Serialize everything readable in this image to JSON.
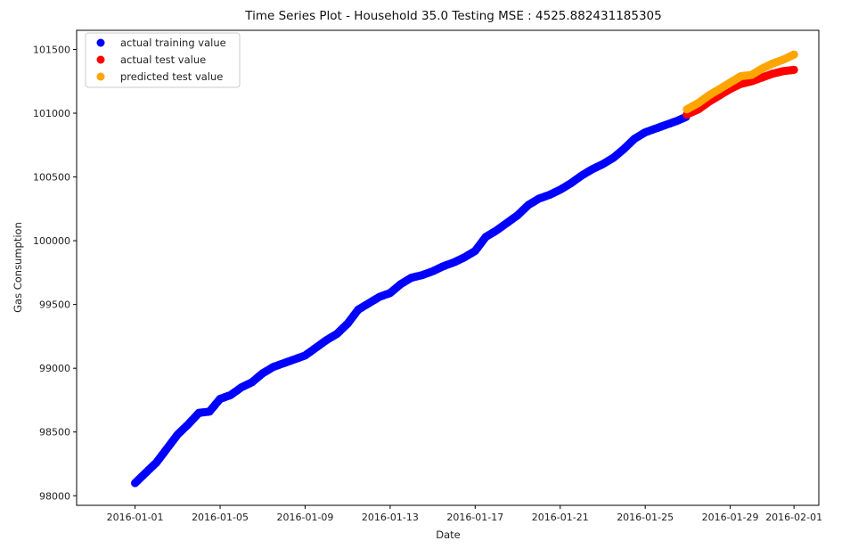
{
  "chart_data": {
    "type": "scatter",
    "title": "Time Series Plot - Household 35.0 Testing MSE : 4525.882431185305",
    "xlabel": "Date",
    "ylabel": "Gas Consumption",
    "x_range": [
      "2015-12-29T06:00",
      "2016-02-02T04:00"
    ],
    "ylim": [
      97925,
      101650
    ],
    "x_ticks": [
      "2016-01-01",
      "2016-01-05",
      "2016-01-09",
      "2016-01-13",
      "2016-01-17",
      "2016-01-21",
      "2016-01-25",
      "2016-01-29",
      "2016-02-01"
    ],
    "y_ticks": [
      98000,
      98500,
      99000,
      99500,
      100000,
      100500,
      101000,
      101500
    ],
    "grid": false,
    "legend_position": "top-left",
    "series": [
      {
        "name": "actual training value",
        "color": "#0000ff",
        "points": [
          [
            "2016-01-01T00:00",
            98100
          ],
          [
            "2016-01-01T12:00",
            98180
          ],
          [
            "2016-01-02T00:00",
            98260
          ],
          [
            "2016-01-02T12:00",
            98370
          ],
          [
            "2016-01-03T00:00",
            98480
          ],
          [
            "2016-01-03T12:00",
            98560
          ],
          [
            "2016-01-04T00:00",
            98650
          ],
          [
            "2016-01-04T12:00",
            98660
          ],
          [
            "2016-01-05T00:00",
            98760
          ],
          [
            "2016-01-05T12:00",
            98790
          ],
          [
            "2016-01-06T00:00",
            98850
          ],
          [
            "2016-01-06T12:00",
            98890
          ],
          [
            "2016-01-07T00:00",
            98960
          ],
          [
            "2016-01-07T12:00",
            99010
          ],
          [
            "2016-01-08T00:00",
            99040
          ],
          [
            "2016-01-08T12:00",
            99070
          ],
          [
            "2016-01-09T00:00",
            99100
          ],
          [
            "2016-01-09T12:00",
            99160
          ],
          [
            "2016-01-10T00:00",
            99220
          ],
          [
            "2016-01-10T12:00",
            99270
          ],
          [
            "2016-01-11T00:00",
            99350
          ],
          [
            "2016-01-11T12:00",
            99460
          ],
          [
            "2016-01-12T00:00",
            99510
          ],
          [
            "2016-01-12T12:00",
            99560
          ],
          [
            "2016-01-13T00:00",
            99590
          ],
          [
            "2016-01-13T12:00",
            99660
          ],
          [
            "2016-01-14T00:00",
            99710
          ],
          [
            "2016-01-14T12:00",
            99730
          ],
          [
            "2016-01-15T00:00",
            99760
          ],
          [
            "2016-01-15T12:00",
            99800
          ],
          [
            "2016-01-16T00:00",
            99830
          ],
          [
            "2016-01-16T12:00",
            99870
          ],
          [
            "2016-01-17T00:00",
            99920
          ],
          [
            "2016-01-17T12:00",
            100030
          ],
          [
            "2016-01-18T00:00",
            100080
          ],
          [
            "2016-01-18T12:00",
            100140
          ],
          [
            "2016-01-19T00:00",
            100200
          ],
          [
            "2016-01-19T12:00",
            100280
          ],
          [
            "2016-01-20T00:00",
            100330
          ],
          [
            "2016-01-20T12:00",
            100360
          ],
          [
            "2016-01-21T00:00",
            100400
          ],
          [
            "2016-01-21T12:00",
            100450
          ],
          [
            "2016-01-22T00:00",
            100510
          ],
          [
            "2016-01-22T12:00",
            100560
          ],
          [
            "2016-01-23T00:00",
            100600
          ],
          [
            "2016-01-23T12:00",
            100650
          ],
          [
            "2016-01-24T00:00",
            100720
          ],
          [
            "2016-01-24T12:00",
            100800
          ],
          [
            "2016-01-25T00:00",
            100850
          ],
          [
            "2016-01-25T12:00",
            100880
          ],
          [
            "2016-01-26T00:00",
            100910
          ],
          [
            "2016-01-26T12:00",
            100940
          ],
          [
            "2016-01-26T22:00",
            100970
          ]
        ]
      },
      {
        "name": "actual test value",
        "color": "#ff0000",
        "points": [
          [
            "2016-01-26T23:00",
            100990
          ],
          [
            "2016-01-27T12:00",
            101030
          ],
          [
            "2016-01-28T00:00",
            101090
          ],
          [
            "2016-01-28T12:00",
            101140
          ],
          [
            "2016-01-29T00:00",
            101190
          ],
          [
            "2016-01-29T12:00",
            101230
          ],
          [
            "2016-01-30T00:00",
            101250
          ],
          [
            "2016-01-30T12:00",
            101280
          ],
          [
            "2016-01-31T00:00",
            101310
          ],
          [
            "2016-01-31T12:00",
            101330
          ],
          [
            "2016-02-01T00:00",
            101340
          ]
        ]
      },
      {
        "name": "predicted test value",
        "color": "#ffa500",
        "points": [
          [
            "2016-01-26T23:00",
            101030
          ],
          [
            "2016-01-27T12:00",
            101080
          ],
          [
            "2016-01-28T00:00",
            101140
          ],
          [
            "2016-01-28T12:00",
            101190
          ],
          [
            "2016-01-29T00:00",
            101240
          ],
          [
            "2016-01-29T12:00",
            101290
          ],
          [
            "2016-01-30T00:00",
            101300
          ],
          [
            "2016-01-30T12:00",
            101350
          ],
          [
            "2016-01-31T00:00",
            101390
          ],
          [
            "2016-01-31T12:00",
            101420
          ],
          [
            "2016-02-01T00:00",
            101460
          ]
        ]
      }
    ]
  }
}
